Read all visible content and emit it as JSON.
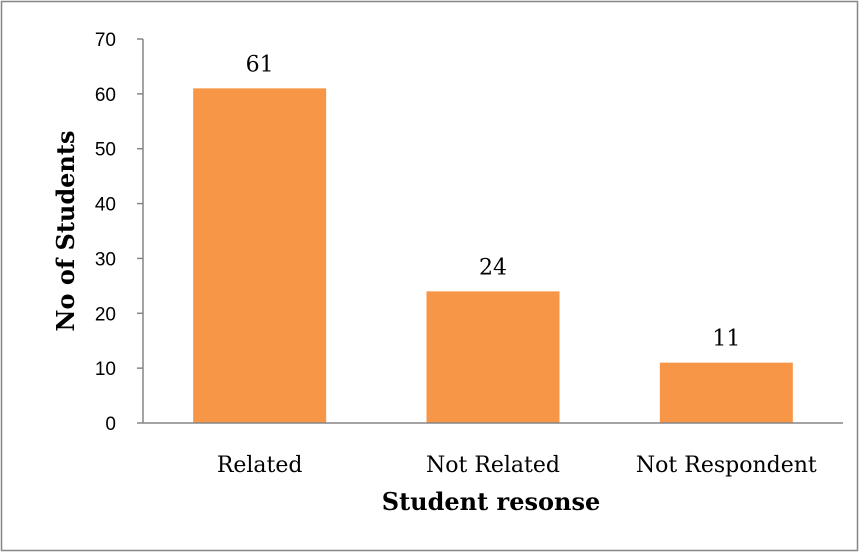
{
  "chart_data": {
    "type": "bar",
    "title": "",
    "xlabel": "Student resonse",
    "ylabel": "No of Students",
    "categories": [
      "Related",
      "Not Related",
      "Not Respondent"
    ],
    "values": [
      61,
      24,
      11
    ],
    "data_labels": [
      "61",
      "24",
      "11"
    ],
    "ylim": [
      0,
      70
    ],
    "yticks": [
      0,
      10,
      20,
      30,
      40,
      50,
      60,
      70
    ],
    "grid": false,
    "legend": "none",
    "bar_color": "#f79646",
    "frame_color": "#868686",
    "axis_color": "#868686"
  }
}
